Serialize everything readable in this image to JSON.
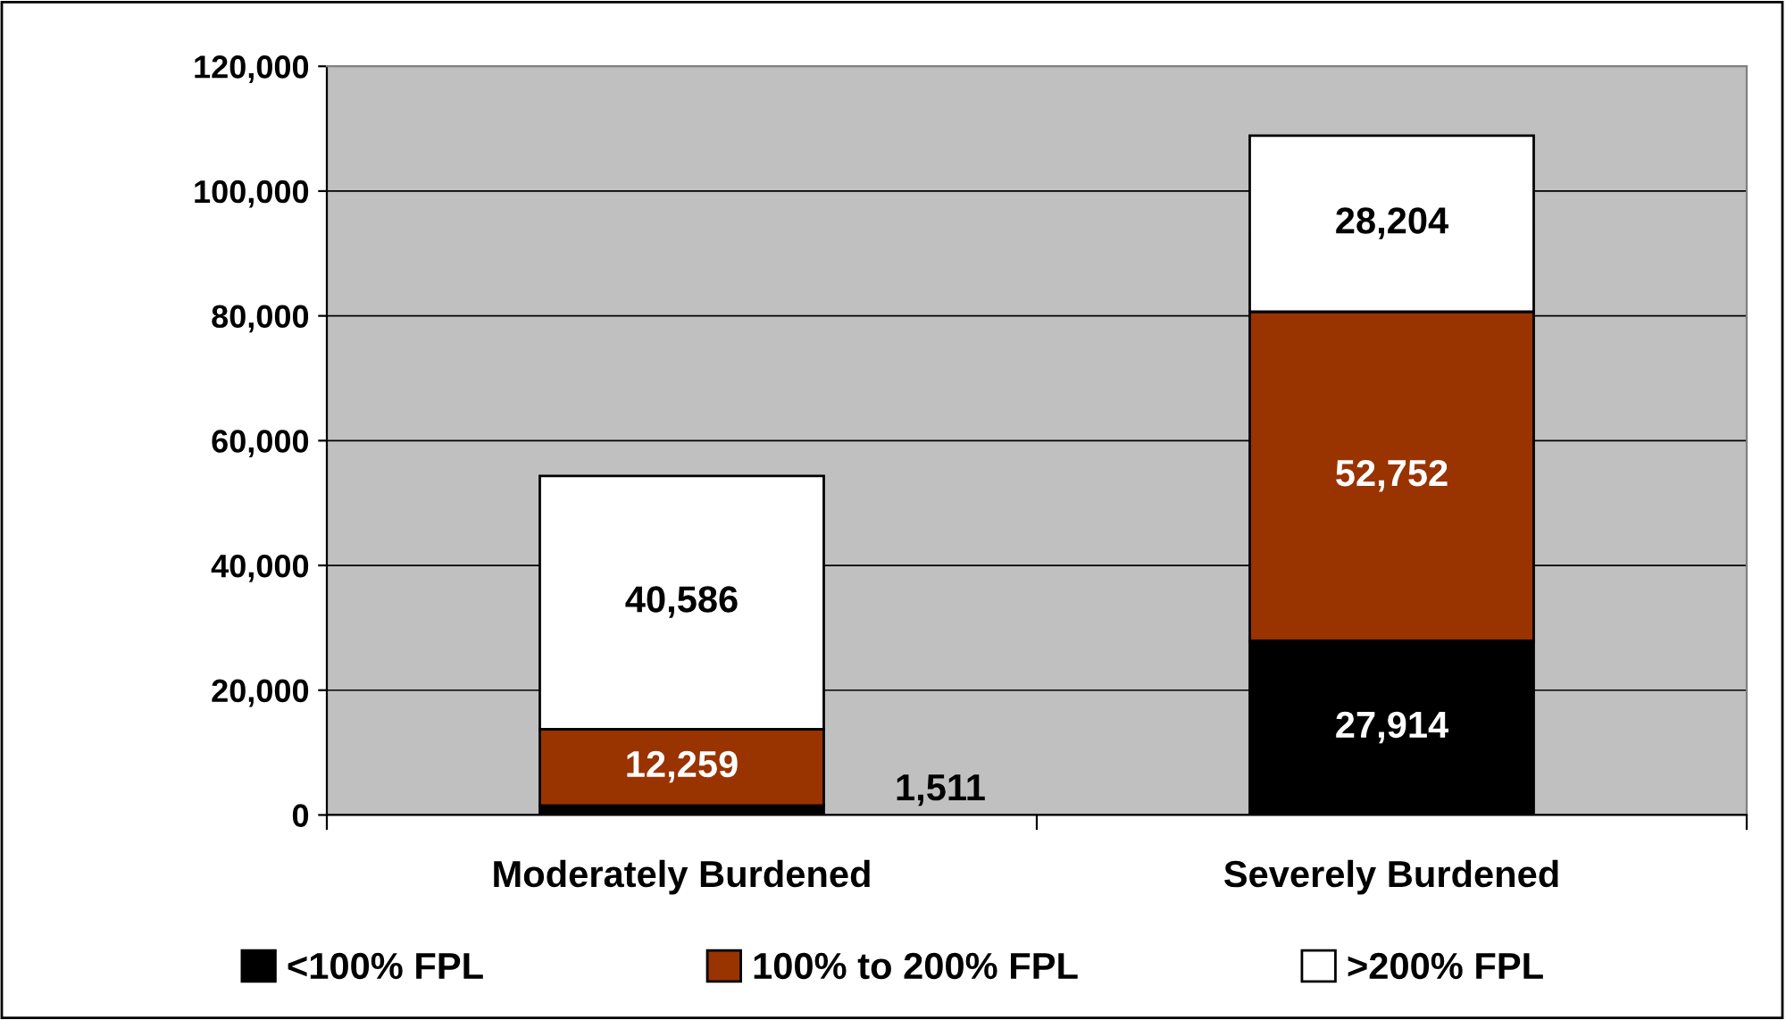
{
  "chart_data": {
    "type": "bar",
    "stacked": true,
    "categories": [
      "Moderately Burdened",
      "Severely Burdened"
    ],
    "series": [
      {
        "name": "<100% FPL",
        "color": "#000000",
        "values": [
          1511,
          27914
        ]
      },
      {
        "name": "100% to 200% FPL",
        "color": "#993300",
        "values": [
          12259,
          52752
        ]
      },
      {
        "name": ">200% FPL",
        "color": "#ffffff",
        "values": [
          40586,
          28204
        ]
      }
    ],
    "ylim": [
      0,
      120000
    ],
    "yticks": [
      {
        "value": 0,
        "label": "0"
      },
      {
        "value": 20000,
        "label": "20,000"
      },
      {
        "value": 40000,
        "label": "40,000"
      },
      {
        "value": 60000,
        "label": "60,000"
      },
      {
        "value": 80000,
        "label": "80,000"
      },
      {
        "value": 100000,
        "label": "100,000"
      },
      {
        "value": 120000,
        "label": "120,000"
      }
    ],
    "grid": "y",
    "legend": "bottom",
    "value_labels": [
      [
        "1,511",
        "27,914"
      ],
      [
        "12,259",
        "52,752"
      ],
      [
        "40,586",
        "28,204"
      ]
    ]
  }
}
